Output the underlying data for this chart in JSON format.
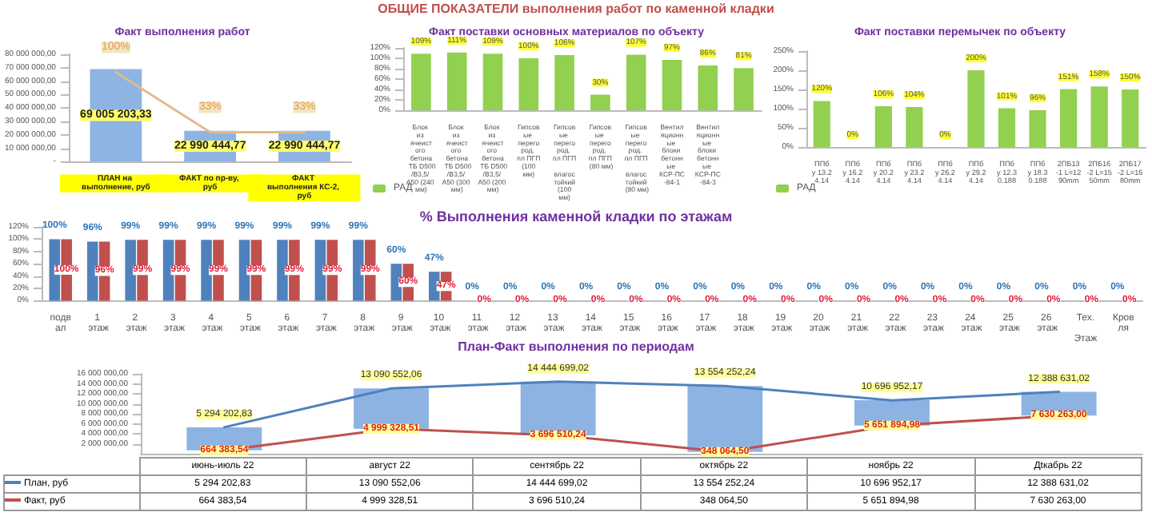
{
  "chart_data": [
    {
      "type": "bar",
      "title": "Факт выполнения работ",
      "annotations": [
        "ОБЩИЕ ПОКАЗАТЕЛИ выполнения работ по каменной кладки"
      ],
      "categories": [
        "ПЛАН на выполнение, руб",
        "ФАКТ по пр-ву, руб",
        "ФАКТ выполнения КС-2, руб"
      ],
      "series": [
        {
          "color": "#8eb4e3",
          "values": [
            69005203.33,
            22990444.77,
            22990444.77
          ],
          "value_labels": [
            "69 005 203,33",
            "22 990 444,77",
            "22 990 444,77"
          ]
        },
        {
          "type": "line",
          "axis": "y2",
          "color": "#e6b98a",
          "values": [
            100,
            33,
            33
          ],
          "value_labels": [
            "100%",
            "33%",
            "33%"
          ]
        }
      ],
      "ylim": [
        0,
        80000000
      ],
      "yticks": [
        {
          "value": 0,
          "label": "-"
        },
        {
          "value": 10000000,
          "label": "10 000 000,00"
        },
        {
          "value": 20000000,
          "label": "20 000 000,00"
        },
        {
          "value": 30000000,
          "label": "30 000 000,00"
        },
        {
          "value": 40000000,
          "label": "40 000 000,00"
        },
        {
          "value": 50000000,
          "label": "50 000 000,00"
        },
        {
          "value": 60000000,
          "label": "60 000 000,00"
        },
        {
          "value": 70000000,
          "label": "70 000 000,00"
        },
        {
          "value": 80000000,
          "label": "80 000 000,00"
        }
      ],
      "y2lim": [
        0,
        120
      ],
      "marker": "none",
      "grid": false,
      "legend": false
    },
    {
      "type": "bar",
      "title": "Факт поставки основных материалов по объекту",
      "categories": [
        "Блок из ячеистого бетона ТБ D500/B3,5/ А50 (240 мм)",
        "Блок из ячеистого бетона ТБ D500/B3,5/ А50 (300 мм)",
        "Блок из ячеистого бетона ТБ D500/B3,5/ А50 (200 мм)",
        "Гипсовые перегород. пл ПГП (100 мм)",
        "Гипсовые перегород. пл ПГП влагостойкий (100 мм)",
        "Гипсовые перегород. пл ПГП (80 мм)",
        "Гипсовые перегород. пл ПГП влагостойкий (80 мм)",
        "Вентиляционные блоки бетонные КСР-ПС-84-1",
        "Вентиляционные блоки бетонные КСР-ПС-84-3",
        null
      ],
      "series": [
        {
          "name": "РАД",
          "color": "#92d050",
          "values": [
            109,
            111,
            109,
            100,
            106,
            30,
            107,
            97,
            86,
            81
          ],
          "value_labels": [
            "109%",
            "111%",
            "109%",
            "100%",
            "106%",
            "30%",
            "107%",
            "97%",
            "86%",
            "81%"
          ]
        }
      ],
      "ylim": [
        0,
        120
      ],
      "yticks": [
        {
          "value": 0,
          "label": "0%"
        },
        {
          "value": 20,
          "label": "20%"
        },
        {
          "value": 40,
          "label": "40%"
        },
        {
          "value": 60,
          "label": "60%"
        },
        {
          "value": 80,
          "label": "80%"
        },
        {
          "value": 100,
          "label": "100%"
        },
        {
          "value": 120,
          "label": "120%"
        }
      ],
      "grid": false,
      "legend": "bottom left"
    },
    {
      "type": "bar",
      "title": "Факт поставки перемычек по объекту",
      "categories": [
        "ППбу 13.24.14",
        "ППбу 16.24.14",
        "ППбу 20.24.14",
        "ППбу 23.24.14",
        "ППбу 26.24.14",
        "ППбу 29.24.14",
        "ППбу 12.30.188",
        "ППбу 18.30.188",
        "2ПБ13-1 L=1290mm",
        "2ПБ16-2 L=1550mm",
        "2ПБ17-2 L=1680mm"
      ],
      "series": [
        {
          "name": "РАД",
          "color": "#92d050",
          "values": [
            120,
            0,
            106,
            104,
            0,
            200,
            101,
            96,
            151,
            158,
            150
          ],
          "value_labels": [
            "120%",
            "0%",
            "106%",
            "104%",
            "0%",
            "200%",
            "101%",
            "96%",
            "151%",
            "158%",
            "150%"
          ]
        }
      ],
      "ylim": [
        0,
        250
      ],
      "yticks": [
        {
          "value": 0,
          "label": "0%"
        },
        {
          "value": 50,
          "label": "50%"
        },
        {
          "value": 100,
          "label": "100%"
        },
        {
          "value": 150,
          "label": "150%"
        },
        {
          "value": 200,
          "label": "200%"
        },
        {
          "value": 250,
          "label": "250%"
        }
      ],
      "grid": false,
      "legend": "bottom left"
    },
    {
      "type": "bar",
      "title": "% Выполнения каменной кладки по этажам",
      "categories": [
        "подвал",
        "1 этаж",
        "2 этаж",
        "3 этаж",
        "4 этаж",
        "5 этаж",
        "6 этаж",
        "7 этаж",
        "8 этаж",
        "9 этаж",
        "10 этаж",
        "11 этаж",
        "12 этаж",
        "13 этаж",
        "14 этаж",
        "15 этаж",
        "16 этаж",
        "17 этаж",
        "18 этаж",
        "19 этаж",
        "20 этаж",
        "21 этаж",
        "22 этаж",
        "23 этаж",
        "24 этаж",
        "25 этаж",
        "26 этаж",
        "Тех. Этаж",
        "Кровля"
      ],
      "series": [
        {
          "color": "#4f81bd",
          "values": [
            100,
            96,
            99,
            99,
            99,
            99,
            99,
            99,
            99,
            60,
            47,
            0,
            0,
            0,
            0,
            0,
            0,
            0,
            0,
            0,
            0,
            0,
            0,
            0,
            0,
            0,
            0,
            0,
            0
          ],
          "value_labels": [
            "100%",
            "96%",
            "99%",
            "99%",
            "99%",
            "99%",
            "99%",
            "99%",
            "99%",
            "60%",
            "47%",
            "0%",
            "0%",
            "0%",
            "0%",
            "0%",
            "0%",
            "0%",
            "0%",
            "0%",
            "0%",
            "0%",
            "0%",
            "0%",
            "0%",
            "0%",
            "0%",
            "0%",
            "0%"
          ]
        },
        {
          "color": "#c0504d",
          "values": [
            100,
            96,
            99,
            99,
            99,
            99,
            99,
            99,
            99,
            60,
            47,
            0,
            0,
            0,
            0,
            0,
            0,
            0,
            0,
            0,
            0,
            0,
            0,
            0,
            0,
            0,
            0,
            0,
            0
          ],
          "value_labels": [
            "100%",
            "96%",
            "99%",
            "99%",
            "99%",
            "99%",
            "99%",
            "99%",
            "99%",
            "60%",
            "47%",
            "0%",
            "0%",
            "0%",
            "0%",
            "0%",
            "0%",
            "0%",
            "0%",
            "0%",
            "0%",
            "0%",
            "0%",
            "0%",
            "0%",
            "0%",
            "0%",
            "0%",
            "0%"
          ]
        }
      ],
      "ylim": [
        0,
        120
      ],
      "yticks": [
        {
          "value": 0,
          "label": "0%"
        },
        {
          "value": 20,
          "label": "20%"
        },
        {
          "value": 40,
          "label": "40%"
        },
        {
          "value": 60,
          "label": "60%"
        },
        {
          "value": 80,
          "label": "80%"
        },
        {
          "value": 100,
          "label": "100%"
        },
        {
          "value": 120,
          "label": "120%"
        }
      ],
      "grid": false,
      "legend": false
    },
    {
      "type": "line",
      "title": "План-Факт выполнения по периодам",
      "categories": [
        "июнь-июль 22",
        "август 22",
        "сентябрь 22",
        "октябрь 22",
        "ноябрь 22",
        "Дtкабрь 22"
      ],
      "series": [
        {
          "type": "bar",
          "color": "#8db3e2",
          "base": [
            664383.54,
            4999328.51,
            3696510.24,
            348064.5,
            5651894.98,
            7630263.0
          ],
          "values": [
            4630000,
            8090000,
            10750000,
            13210000,
            5050000,
            4760000
          ]
        },
        {
          "name": "План, руб",
          "color": "#4f81bd",
          "values": [
            5294202.83,
            13090552.06,
            14444699.02,
            13554252.24,
            10696952.17,
            12388631.02
          ],
          "value_labels": [
            "5 294 202,83",
            "13 090 552,06",
            "14 444 699,02",
            "13 554 252,24",
            "10 696 952,17",
            "12 388 631,02"
          ]
        },
        {
          "name": "Факт, руб",
          "color": "#c0504d",
          "values": [
            664383.54,
            4999328.51,
            3696510.24,
            348064.5,
            5651894.98,
            7630263.0
          ],
          "value_labels": [
            "664 383,54",
            "4 999 328,51",
            "3 696 510,24",
            "348 064,50",
            "5 651 894,98",
            "7 630 263,00"
          ]
        }
      ],
      "ylim": [
        0,
        16000000
      ],
      "yticks": [
        {
          "value": 2000000,
          "label": "2 000 000,00"
        },
        {
          "value": 4000000,
          "label": "4 000 000,00"
        },
        {
          "value": 6000000,
          "label": "6 000 000,00"
        },
        {
          "value": 8000000,
          "label": "8 000 000,00"
        },
        {
          "value": 10000000,
          "label": "10 000 000,00"
        },
        {
          "value": 12000000,
          "label": "12 000 000,00"
        },
        {
          "value": 14000000,
          "label": "14 000 000,00"
        },
        {
          "value": 16000000,
          "label": "16 000 000,00"
        }
      ],
      "tick_labels": "y",
      "marker": "none",
      "grid": false,
      "legend": "bottom left"
    }
  ]
}
